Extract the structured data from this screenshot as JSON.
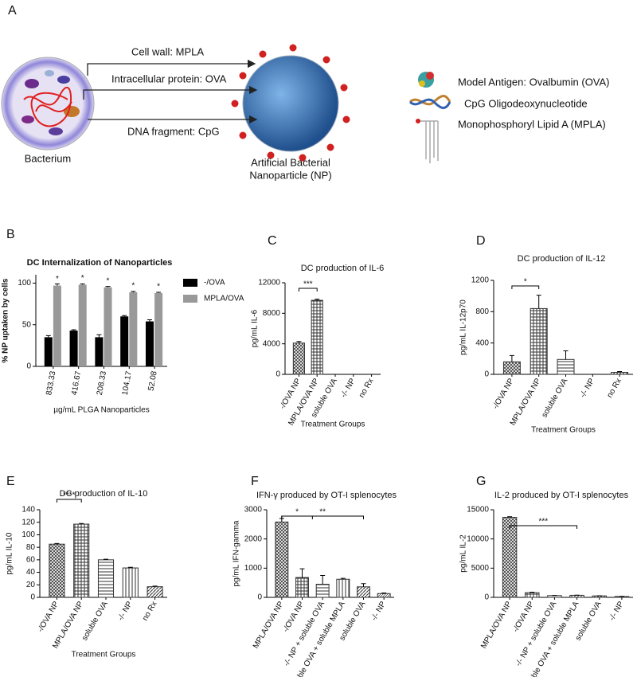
{
  "diagram": {
    "panel": "A",
    "arrows": [
      "Cell wall: MPLA",
      "Intracellular protein: OVA",
      "DNA fragment: CpG"
    ],
    "bacterium": "Bacterium",
    "nanoparticle": [
      "Artificial Bacterial",
      "Nanoparticle (NP)"
    ],
    "legend": [
      "Model Antigen: Ovalbumin (OVA)",
      "CpG Oligodeoxynucleotide",
      "Monophosphoryl Lipid A (MPLA)"
    ]
  },
  "chart_data": [
    {
      "panel": "B",
      "type": "bar",
      "title": "DC Internalization of Nanoparticles",
      "y_label": "% NP uptaken by cells",
      "x_label": "µg/mL PLGA Nanoparticles",
      "categories": [
        "833.33",
        "416.67",
        "208.33",
        "104.17",
        "52.08"
      ],
      "series": [
        {
          "name": "-/OVA",
          "color": "#000000",
          "values": [
            35,
            43,
            35,
            60,
            54
          ],
          "errors": [
            2,
            1,
            3,
            1,
            2
          ]
        },
        {
          "name": "MPLA/OVA",
          "color": "#999999",
          "values": [
            97,
            98,
            95,
            89,
            88
          ],
          "errors": [
            2,
            1,
            1,
            1,
            1
          ]
        }
      ],
      "ylim": [
        0,
        110
      ],
      "yticks": [
        0,
        50,
        100
      ],
      "annotations": [
        "*",
        "*",
        "*",
        "*",
        "*"
      ]
    },
    {
      "panel": "C",
      "type": "bar",
      "title": "DC production of IL-6",
      "y_label": "pg/mL IL-6",
      "x_label": "Treatment Groups",
      "categories": [
        "-/OVA NP",
        "MPLA/OVA NP",
        "soluble OVA",
        "-/- NP",
        "no Rx"
      ],
      "values": [
        4100,
        9700,
        0,
        0,
        0
      ],
      "errors": [
        200,
        150,
        0,
        0,
        0
      ],
      "color": "#333333",
      "ylim": [
        0,
        12000
      ],
      "yticks": [
        0,
        4000,
        8000,
        12000
      ],
      "annotations": [
        "***"
      ]
    },
    {
      "panel": "D",
      "type": "bar",
      "title": "DC production of IL-12",
      "y_label": "pg/mL IL-12p70",
      "x_label": "Treatment Groups",
      "categories": [
        "-/OVA NP",
        "MPLA/OVA NP",
        "soluble OVA",
        "-/- NP",
        "no Rx"
      ],
      "values": [
        160,
        840,
        190,
        0,
        25
      ],
      "errors": [
        80,
        170,
        110,
        0,
        10
      ],
      "color": "#333333",
      "ylim": [
        0,
        1200
      ],
      "yticks": [
        0,
        400,
        800,
        1200
      ],
      "annotations": [
        "*"
      ]
    },
    {
      "panel": "E",
      "type": "bar",
      "title": "DC production of IL-10",
      "y_label": "pg/mL IL-10",
      "x_label": "Treatment Groups",
      "categories": [
        "-/OVA NP",
        "MPLA/OVA NP",
        "soluble OVA",
        "-/- NP",
        "no Rx"
      ],
      "values": [
        85,
        117,
        60,
        47,
        17
      ],
      "errors": [
        1,
        1,
        1,
        1,
        1
      ],
      "color": "#333333",
      "ylim": [
        0,
        140
      ],
      "yticks": [
        0,
        20,
        40,
        60,
        80,
        100,
        120,
        140
      ],
      "annotations": [
        "****"
      ]
    },
    {
      "panel": "F",
      "type": "bar",
      "title": "IFN-γ produced by OT-I splenocytes",
      "y_label": "pg/mL IFN-gamma",
      "categories": [
        "MPLA/OVA NP",
        "-/OVA NP",
        "-/- NP + soluble OVA",
        "soluble OVA + soluble MPLA",
        "soluble OVA",
        "-/- NP"
      ],
      "values": [
        2580,
        680,
        450,
        620,
        360,
        130
      ],
      "errors": [
        120,
        300,
        300,
        30,
        110,
        20
      ],
      "color": "#333333",
      "ylim": [
        0,
        3000
      ],
      "yticks": [
        0,
        1000,
        2000,
        3000
      ],
      "annotations": [
        "*",
        "**"
      ]
    },
    {
      "panel": "G",
      "type": "bar",
      "title": "IL-2 produced by OT-I splenocytes",
      "y_label": "pg/mL IL-2",
      "categories": [
        "MPLA/OVA NP",
        "-/OVA NP",
        "-/- NP + soluble OVA",
        "soluble OVA + soluble MPLA",
        "soluble OVA",
        "-/- NP"
      ],
      "values": [
        13700,
        800,
        300,
        350,
        250,
        150
      ],
      "errors": [
        100,
        80,
        20,
        20,
        20,
        20
      ],
      "color": "#333333",
      "ylim": [
        0,
        15000
      ],
      "yticks": [
        0,
        5000,
        10000,
        15000
      ],
      "annotations": [
        "***"
      ]
    }
  ]
}
